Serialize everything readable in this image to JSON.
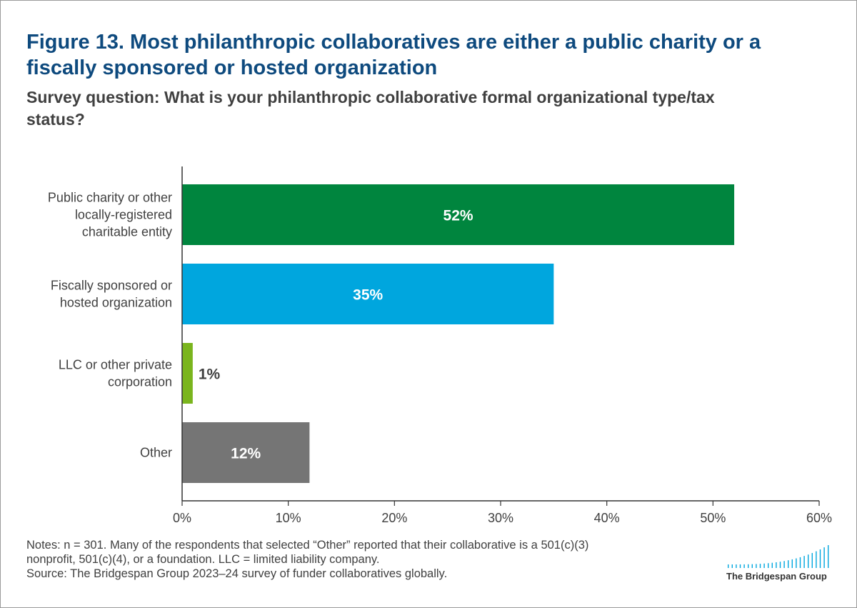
{
  "header": {
    "title": "Figure 13. Most philanthropic collaboratives are either a public charity or a fiscally sponsored or hosted organization",
    "subtitle": "Survey question: What is your philanthropic collaborative formal organizational type/tax status?"
  },
  "chart_data": {
    "type": "bar",
    "orientation": "horizontal",
    "categories": [
      "Public charity or other locally-registered charitable entity",
      "Fiscally sponsored or hosted organization",
      "LLC or other private corporation",
      "Other"
    ],
    "category_label_lines": [
      [
        "Public charity or other",
        "locally-registered",
        "charitable entity"
      ],
      [
        "Fiscally sponsored or",
        "hosted organization"
      ],
      [
        "LLC or other private",
        "corporation"
      ],
      [
        "Other"
      ]
    ],
    "values": [
      52,
      35,
      1,
      12
    ],
    "data_labels": [
      "52%",
      "35%",
      "1%",
      "12%"
    ],
    "colors": [
      "#00853e",
      "#00a6de",
      "#7ab51d",
      "#757575"
    ],
    "xlim": [
      0,
      60
    ],
    "xticks": [
      0,
      10,
      20,
      30,
      40,
      50,
      60
    ],
    "xtick_labels": [
      "0%",
      "10%",
      "20%",
      "30%",
      "40%",
      "50%",
      "60%"
    ],
    "grid": false,
    "legend": "none"
  },
  "footer": {
    "notes_line1": "Notes: n = 301. Many of the respondents that selected “Other” reported that their collaborative is a 501(c)(3)",
    "notes_line2": "nonprofit, 501(c)(4), or a foundation. LLC = limited liability company.",
    "source": "Source: The Bridgespan Group 2023–24 survey of funder collaboratives globally.",
    "logo_text": "The Bridgespan Group",
    "logo_color": "#00a6de"
  }
}
